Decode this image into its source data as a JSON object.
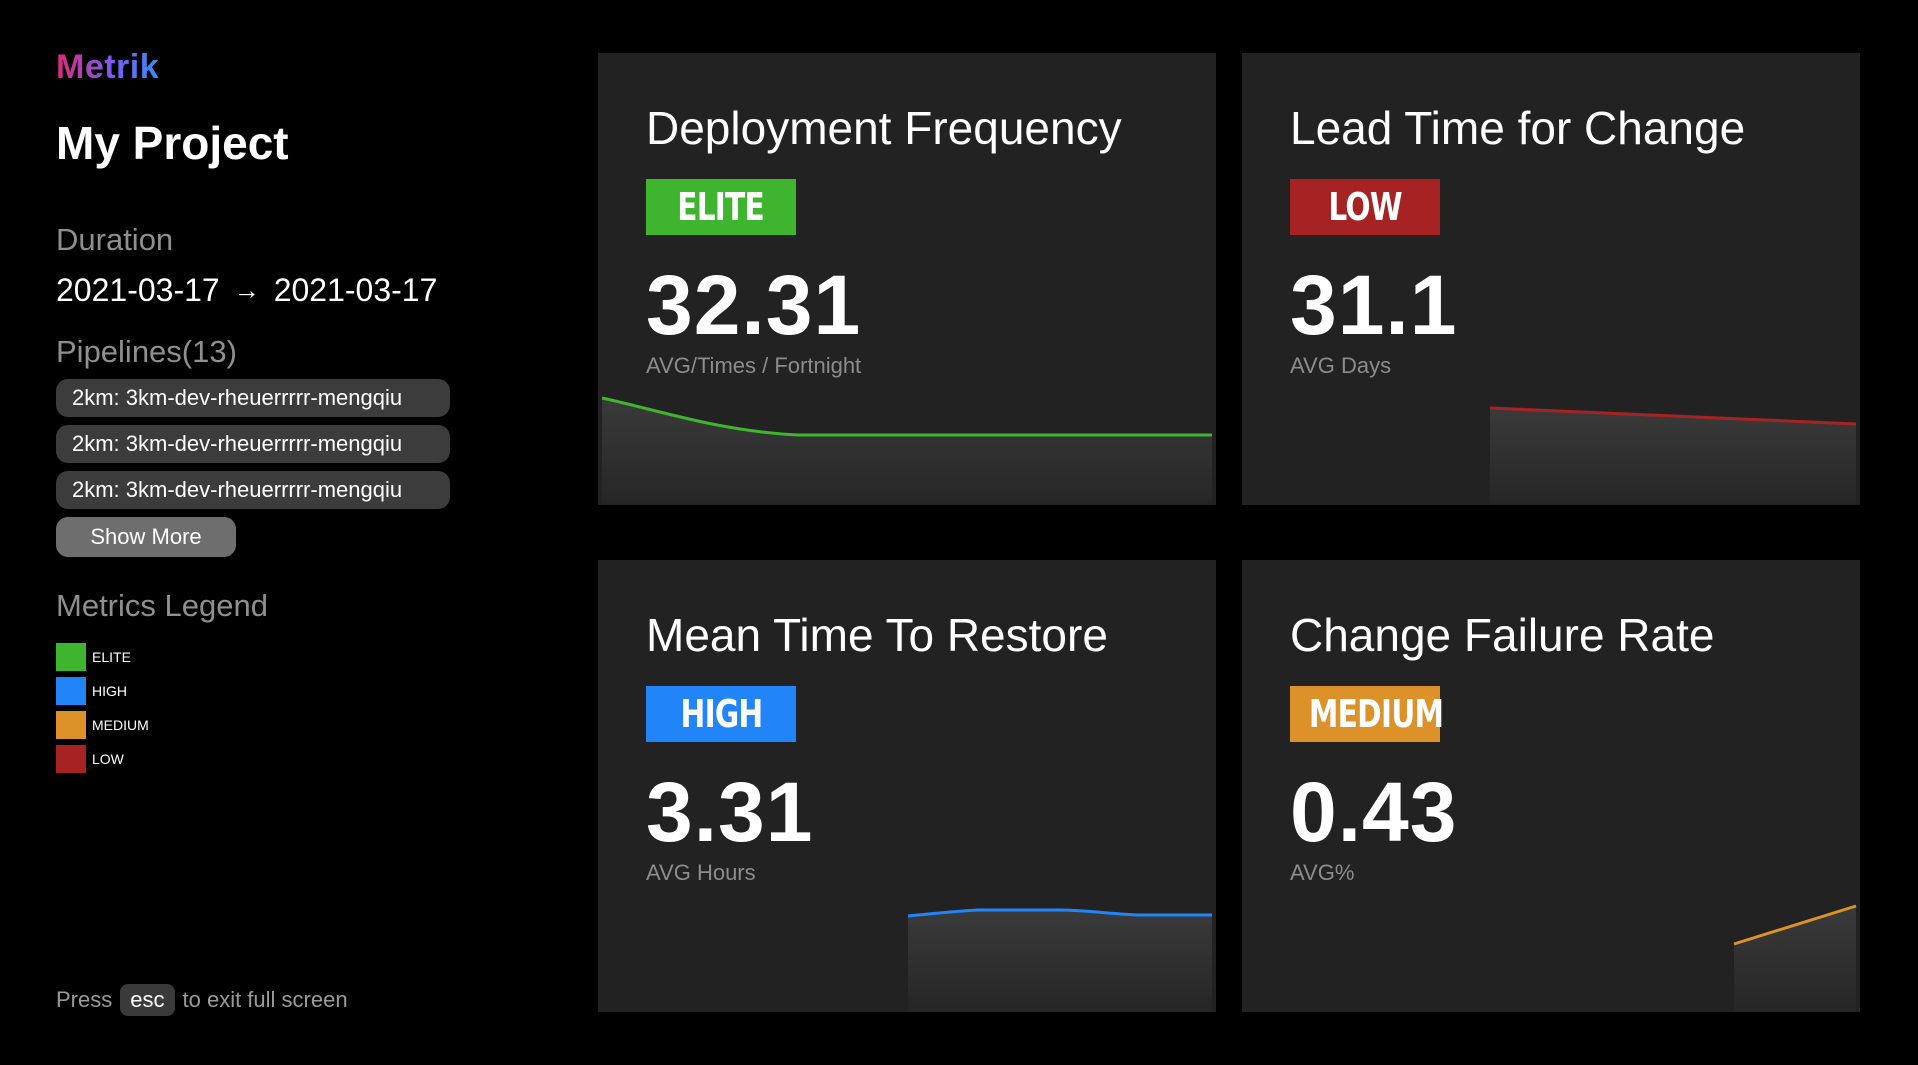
{
  "app": {
    "logo": "Metrik"
  },
  "project": {
    "title": "My Project"
  },
  "duration": {
    "label": "Duration",
    "start": "2021-03-17",
    "arrow": "→",
    "end": "2021-03-17"
  },
  "pipelines": {
    "label": "Pipelines(13)",
    "items": [
      "2km: 3km-dev-rheuerrrrr-mengqiu",
      "2km: 3km-dev-rheuerrrrr-mengqiu",
      "2km: 3km-dev-rheuerrrrr-mengqiu"
    ],
    "show_more": "Show More"
  },
  "legend": {
    "label": "Metrics Legend",
    "items": [
      {
        "label": "ELITE",
        "color": "#3fb52f"
      },
      {
        "label": "HIGH",
        "color": "#2185f9"
      },
      {
        "label": "MEDIUM",
        "color": "#dc9228"
      },
      {
        "label": "LOW",
        "color": "#a72323"
      }
    ]
  },
  "esc_hint": {
    "press": "Press",
    "key": "esc",
    "suffix": "to exit full screen"
  },
  "metrics": [
    {
      "title": "Deployment Frequency",
      "level": "ELITE",
      "color": "#3fb52f",
      "value": "32.31",
      "unit": "AVG/Times / Fortnight"
    },
    {
      "title": "Lead Time for Change",
      "level": "LOW",
      "color": "#a72323",
      "value": "31.1",
      "unit": "AVG Days"
    },
    {
      "title": "Mean Time To Restore",
      "level": "HIGH",
      "color": "#2185f9",
      "value": "3.31",
      "unit": "AVG Hours"
    },
    {
      "title": "Change Failure Rate",
      "level": "MEDIUM",
      "color": "#dc9228",
      "value": "0.43",
      "unit": "AVG%"
    }
  ]
}
